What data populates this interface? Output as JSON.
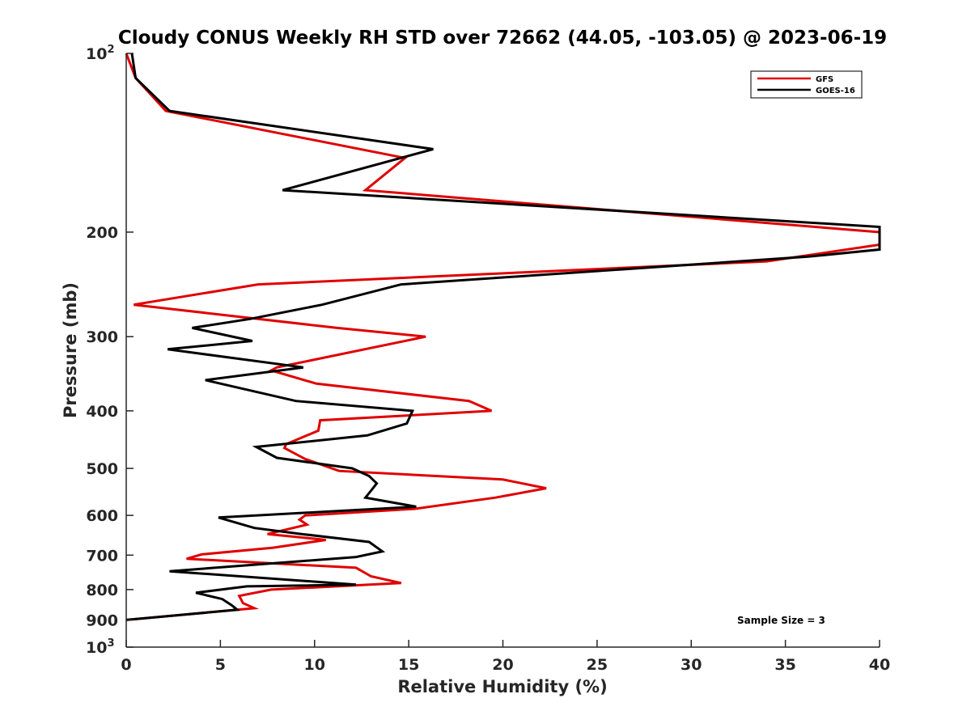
{
  "chart_data": {
    "type": "line",
    "orientation": "vertical-profile",
    "title": "Cloudy CONUS Weekly RH STD over 72662 (44.05, -103.05) @ 2023-06-19",
    "xlabel": "Relative Humidity (%)",
    "ylabel": "Pressure (mb)",
    "xlim": [
      0,
      40
    ],
    "ylim": [
      100,
      1000
    ],
    "y_scale": "log",
    "y_reversed": true,
    "grid": false,
    "legend_position": "top-right",
    "x_ticks": [
      "0",
      "5",
      "10",
      "15",
      "20",
      "25",
      "30",
      "35",
      "40"
    ],
    "y_ticks": [
      {
        "base": "10",
        "exp": "2"
      },
      {
        "base": "200",
        "exp": ""
      },
      {
        "base": "300",
        "exp": ""
      },
      {
        "base": "400",
        "exp": ""
      },
      {
        "base": "500",
        "exp": ""
      },
      {
        "base": "600",
        "exp": ""
      },
      {
        "base": "700",
        "exp": ""
      },
      {
        "base": "800",
        "exp": ""
      },
      {
        "base": "900",
        "exp": ""
      },
      {
        "base": "10",
        "exp": "3"
      }
    ],
    "annotation": "Sample Size = 3",
    "series": [
      {
        "name": "GFS",
        "color": "#e00000",
        "x": [
          0.0,
          0.5,
          2.1,
          14.8,
          12.7,
          40.0,
          40.0,
          34.0,
          7.0,
          0.4,
          11.2,
          15.9,
          8.0,
          7.7,
          10.1,
          18.2,
          19.4,
          10.3,
          10.2,
          8.5,
          8.4,
          9.5,
          11.3,
          20.0,
          22.3,
          19.6,
          15.3,
          9.5,
          9.2,
          9.6,
          7.5,
          10.6,
          7.8,
          4.0,
          3.2,
          12.2,
          13.0,
          14.6,
          7.7,
          6.0,
          6.2,
          6.8,
          0.0
        ],
        "y": [
          100,
          110,
          125,
          150,
          170,
          200,
          210,
          224,
          245,
          265,
          290,
          300,
          338,
          342,
          360,
          385,
          400,
          415,
          432,
          455,
          462,
          482,
          505,
          522,
          540,
          560,
          585,
          600,
          610,
          622,
          645,
          660,
          680,
          698,
          710,
          735,
          760,
          780,
          800,
          820,
          843,
          860,
          900
        ]
      },
      {
        "name": "GOES-16",
        "color": "#000000",
        "x": [
          0.3,
          0.5,
          2.3,
          16.3,
          8.3,
          40.0,
          40.0,
          36.2,
          14.6,
          10.4,
          6.6,
          3.5,
          6.7,
          2.2,
          9.4,
          4.2,
          9.0,
          15.2,
          14.9,
          12.8,
          6.9,
          8.0,
          12.0,
          12.9,
          13.3,
          13.0,
          12.7,
          15.4,
          4.9,
          6.8,
          9.3,
          12.9,
          13.6,
          12.2,
          2.3,
          12.2,
          6.4,
          3.7,
          5.1,
          5.6,
          5.9,
          0.0
        ],
        "y": [
          100,
          110,
          125,
          145,
          170,
          196,
          214,
          220,
          245,
          265,
          280,
          290,
          305,
          315,
          338,
          355,
          385,
          400,
          420,
          440,
          460,
          480,
          500,
          515,
          530,
          545,
          560,
          580,
          605,
          630,
          645,
          665,
          690,
          705,
          745,
          785,
          790,
          810,
          830,
          850,
          865,
          900
        ]
      }
    ]
  }
}
